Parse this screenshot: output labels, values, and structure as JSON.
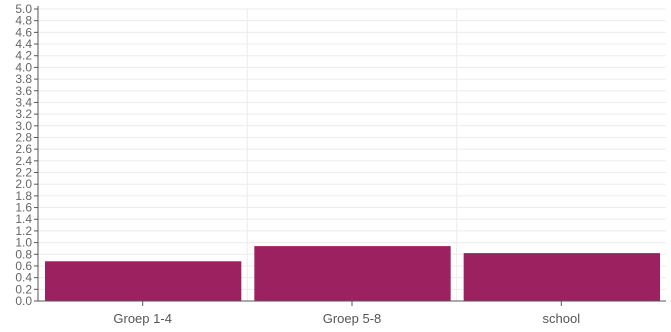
{
  "chart_data": {
    "type": "bar",
    "title": "",
    "xlabel": "",
    "ylabel": "",
    "categories": [
      "Groep 1-4",
      "Groep 5-8",
      "school"
    ],
    "values": [
      0.68,
      0.94,
      0.82
    ],
    "ylim": [
      0,
      5.0
    ],
    "ytick_step": 0.2,
    "yticks": [
      "0.0",
      "0.2",
      "0.4",
      "0.6",
      "0.8",
      "1.0",
      "1.2",
      "1.4",
      "1.6",
      "1.8",
      "2.0",
      "2.2",
      "2.4",
      "2.6",
      "2.8",
      "3.0",
      "3.2",
      "3.4",
      "3.6",
      "3.8",
      "4.0",
      "4.2",
      "4.4",
      "4.6",
      "4.8",
      "5.0"
    ],
    "grid": true,
    "legend": "none",
    "colors": {
      "bar": "#9b2160",
      "axis": "#555555",
      "grid": "#ececec",
      "tick_label": "#666666",
      "category_label": "#555555"
    }
  }
}
